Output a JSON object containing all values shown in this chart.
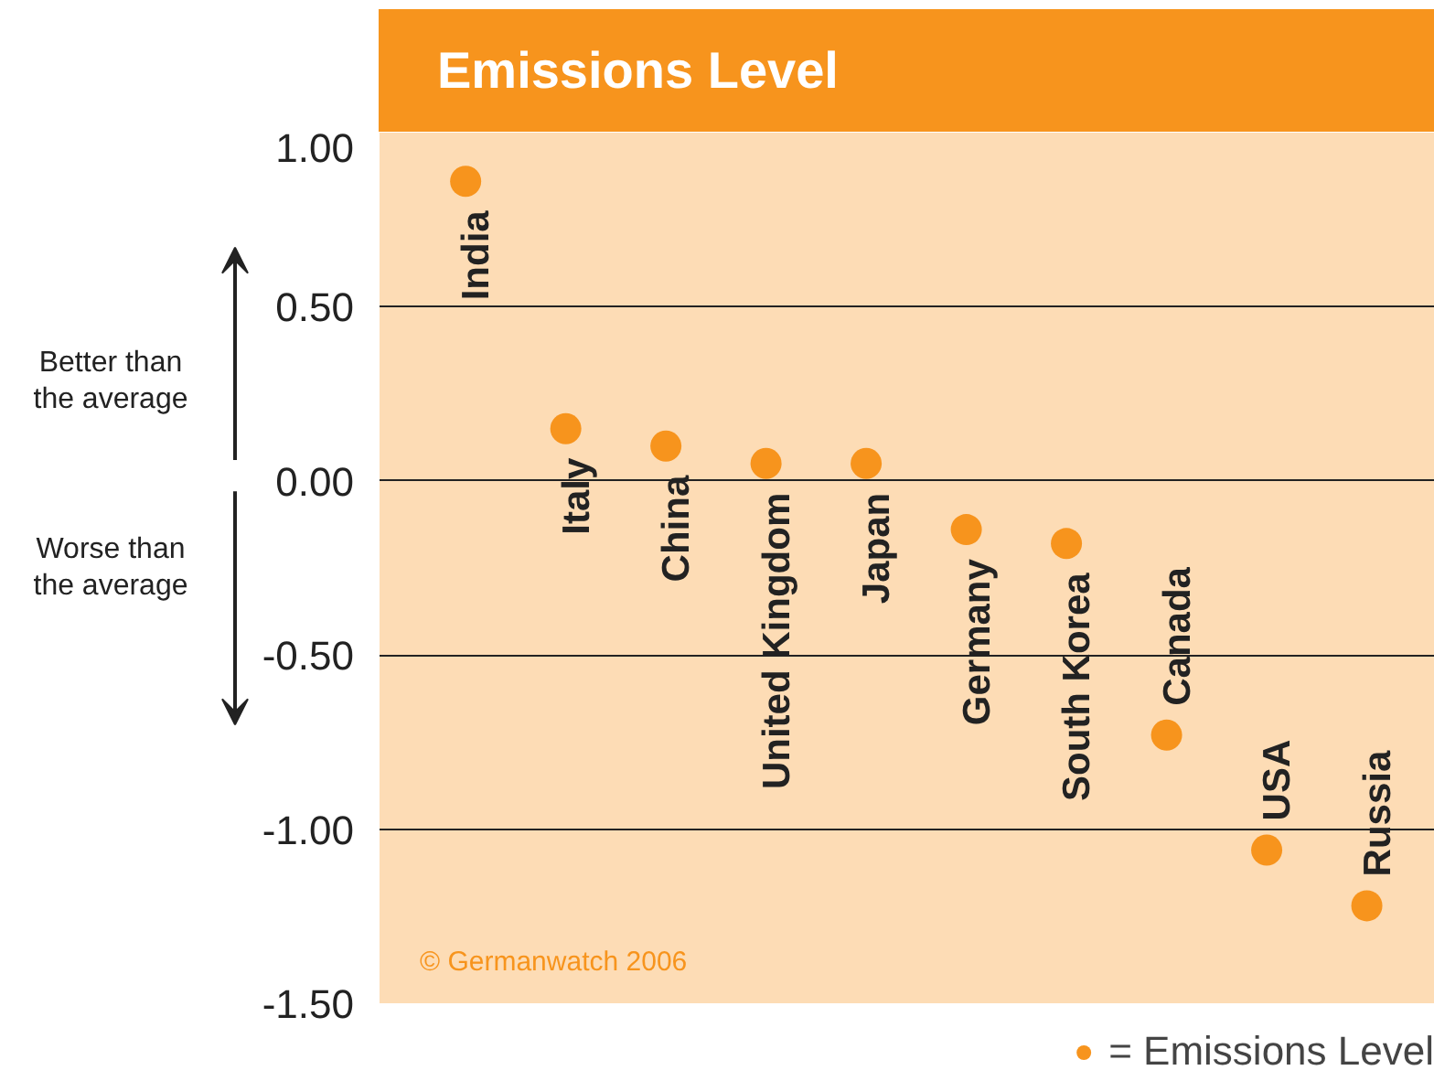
{
  "chart_data": {
    "type": "scatter",
    "title": "Emissions Level",
    "categories": [
      "India",
      "Italy",
      "China",
      "United Kingdom",
      "Japan",
      "Germany",
      "South Korea",
      "Canada",
      "USA",
      "Russia"
    ],
    "series": [
      {
        "name": "= Emissions Level",
        "color": "#f7941d",
        "values": [
          0.86,
          0.15,
          0.1,
          0.05,
          0.05,
          -0.14,
          -0.18,
          -0.73,
          -1.06,
          -1.22
        ]
      }
    ],
    "ylim": [
      -1.5,
      1.0
    ],
    "yticks": [
      {
        "value": 1.0,
        "label": "1.00"
      },
      {
        "value": 0.5,
        "label": "0.50"
      },
      {
        "value": 0,
        "label": "0.00"
      },
      {
        "value": -0.5,
        "label": "-0.50"
      },
      {
        "value": -1.0,
        "label": "-1.00"
      },
      {
        "value": -1.5,
        "label": "-1.50"
      }
    ],
    "grid": "y",
    "legend": "bottom right",
    "marker": "circle",
    "tick_labels": "y",
    "annotations": [
      "Better than\nthe average",
      "Worse than\nthe average",
      "© Germanwatch 2006"
    ]
  }
}
